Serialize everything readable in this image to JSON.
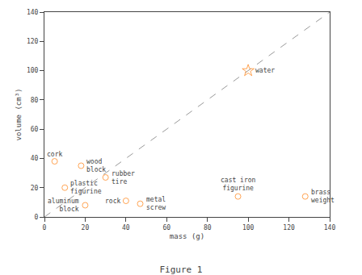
{
  "chart_data": {
    "type": "scatter",
    "title": "Figure 1",
    "xlabel": "mass (g)",
    "ylabel": "volume (cm³)",
    "xlim": [
      0,
      140
    ],
    "ylim": [
      0,
      140
    ],
    "xticks": [
      0,
      20,
      40,
      60,
      80,
      100,
      120,
      140
    ],
    "yticks": [
      0,
      20,
      40,
      60,
      80,
      100,
      120,
      140
    ],
    "grid": false,
    "points": [
      {
        "x": 5,
        "y": 38,
        "label": "cork",
        "marker": "circle"
      },
      {
        "x": 18,
        "y": 35,
        "label": "wood\nblock",
        "marker": "circle"
      },
      {
        "x": 10,
        "y": 20,
        "label": "plastic\nfigurine",
        "marker": "circle"
      },
      {
        "x": 30,
        "y": 27,
        "label": "rubber\ntire",
        "marker": "circle"
      },
      {
        "x": 20,
        "y": 8,
        "label": "aluminum\nblock",
        "marker": "circle"
      },
      {
        "x": 40,
        "y": 11,
        "label": "rock",
        "marker": "circle"
      },
      {
        "x": 47,
        "y": 9,
        "label": "metal\nscrew",
        "marker": "circle"
      },
      {
        "x": 95,
        "y": 14,
        "label": "cast iron\nfigurine",
        "marker": "circle"
      },
      {
        "x": 128,
        "y": 14,
        "label": "brass\nweight",
        "marker": "circle"
      },
      {
        "x": 100,
        "y": 100,
        "label": "water",
        "marker": "star"
      }
    ],
    "reference_line": {
      "x": [
        0,
        140
      ],
      "y": [
        0,
        140
      ],
      "line_style": "dashed"
    }
  }
}
